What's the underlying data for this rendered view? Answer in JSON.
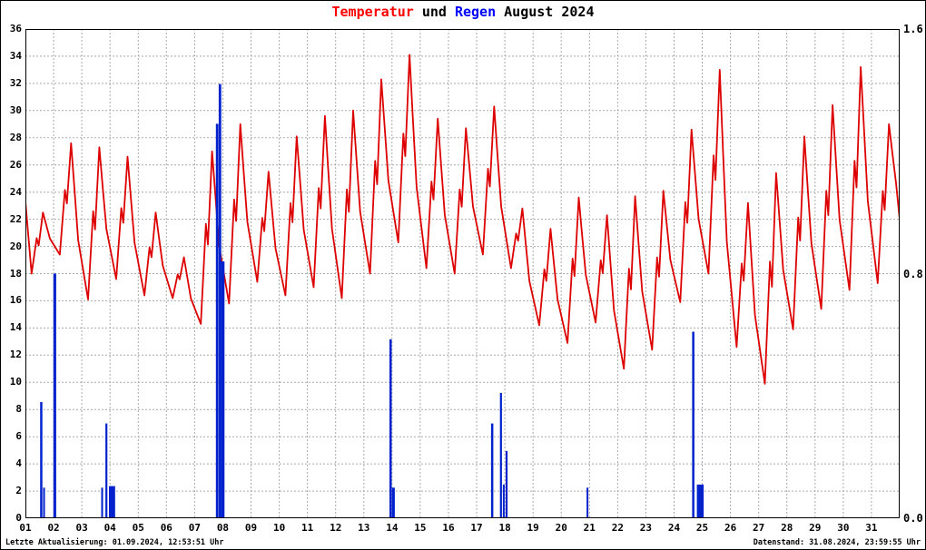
{
  "title": {
    "part1": "Temperatur",
    "part2": " und ",
    "part3": "Regen",
    "part4": " August 2024"
  },
  "footer": {
    "left": "Letzte Aktualisierung: 01.09.2024, 12:53:51 Uhr",
    "right": "Datenstand: 31.08.2024, 23:59:55 Uhr"
  },
  "colors": {
    "title_red": "#ff0000",
    "title_blue": "#0000ff",
    "temperature_line": "#dd0000",
    "rain_bar": "#0022cc",
    "grid": "#aaaaaa",
    "border": "#000000",
    "background": "#ffffff"
  },
  "chart_data": {
    "type": "line+bar",
    "title": "Temperatur und Regen August 2024",
    "legend": "none",
    "grid": "dashed",
    "series": [
      {
        "name": "Temperatur",
        "type": "line",
        "axis": "left",
        "color": "#dd0000"
      },
      {
        "name": "Regen",
        "type": "bar",
        "axis": "right",
        "color": "#0022cc"
      }
    ],
    "x_axis": {
      "range": [
        1,
        32
      ],
      "tick_labels": [
        "01",
        "02",
        "03",
        "04",
        "05",
        "06",
        "07",
        "08",
        "09",
        "10",
        "11",
        "12",
        "13",
        "14",
        "15",
        "16",
        "17",
        "18",
        "19",
        "20",
        "21",
        "22",
        "23",
        "24",
        "25",
        "26",
        "27",
        "28",
        "29",
        "30",
        "31"
      ]
    },
    "y_left_axis": {
      "range": [
        0,
        36
      ],
      "tick_step": 2
    },
    "y_right_axis": {
      "range": [
        0,
        1.6
      ],
      "ticks": [
        {
          "value": 0.0,
          "label": "0.0"
        },
        {
          "value": 0.8,
          "label": "0.8"
        },
        {
          "value": 1.6,
          "label": "1.6"
        }
      ]
    },
    "temperature": {
      "start": 23.3,
      "end": 22.0,
      "daily_format": [
        "day",
        "min",
        "max"
      ],
      "daily": [
        [
          1,
          18.0,
          22.5
        ],
        [
          2,
          19.4,
          27.6
        ],
        [
          3,
          16.1,
          27.3
        ],
        [
          4,
          17.6,
          26.6
        ],
        [
          5,
          16.4,
          22.5
        ],
        [
          6,
          16.2,
          19.2
        ],
        [
          7,
          14.3,
          27.0
        ],
        [
          8,
          15.8,
          29.0
        ],
        [
          9,
          17.4,
          25.5
        ],
        [
          10,
          16.4,
          28.1
        ],
        [
          11,
          17.0,
          29.6
        ],
        [
          12,
          16.2,
          30.0
        ],
        [
          13,
          18.0,
          32.3
        ],
        [
          14,
          20.3,
          34.1
        ],
        [
          15,
          18.4,
          29.4
        ],
        [
          16,
          18.0,
          28.7
        ],
        [
          17,
          19.4,
          30.3
        ],
        [
          18,
          18.4,
          22.8
        ],
        [
          19,
          14.2,
          21.3
        ],
        [
          20,
          12.9,
          23.6
        ],
        [
          21,
          14.4,
          22.3
        ],
        [
          22,
          11.0,
          23.7
        ],
        [
          23,
          12.4,
          24.1
        ],
        [
          24,
          15.9,
          28.6
        ],
        [
          25,
          18.0,
          33.0
        ],
        [
          26,
          12.6,
          23.2
        ],
        [
          27,
          9.9,
          25.4
        ],
        [
          28,
          13.9,
          28.1
        ],
        [
          29,
          15.4,
          30.4
        ],
        [
          30,
          16.8,
          33.2
        ],
        [
          31,
          17.3,
          29.0
        ]
      ]
    },
    "rain": {
      "bars_format": [
        "day",
        "width_days",
        "height_right_axis"
      ],
      "bars": [
        [
          1.56,
          0.08,
          0.38
        ],
        [
          1.66,
          0.06,
          0.1
        ],
        [
          2.04,
          0.1,
          0.8
        ],
        [
          3.72,
          0.06,
          0.1
        ],
        [
          3.87,
          0.07,
          0.31
        ],
        [
          4.07,
          0.22,
          0.105
        ],
        [
          7.8,
          0.09,
          1.29
        ],
        [
          7.9,
          0.09,
          1.42
        ],
        [
          8.0,
          0.12,
          0.84
        ],
        [
          13.95,
          0.08,
          0.585
        ],
        [
          14.05,
          0.1,
          0.1
        ],
        [
          17.55,
          0.08,
          0.31
        ],
        [
          17.86,
          0.07,
          0.41
        ],
        [
          17.96,
          0.06,
          0.11
        ],
        [
          18.06,
          0.07,
          0.22
        ],
        [
          20.93,
          0.06,
          0.1
        ],
        [
          24.68,
          0.08,
          0.61
        ],
        [
          24.93,
          0.24,
          0.11
        ]
      ]
    }
  }
}
